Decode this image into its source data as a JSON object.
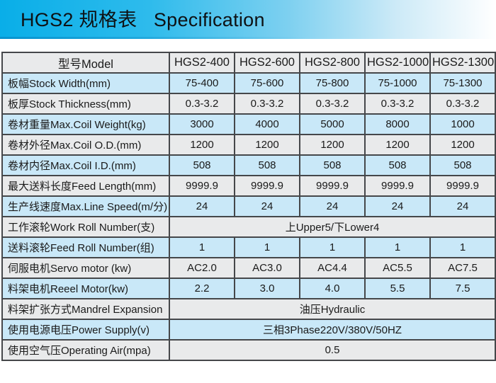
{
  "title": {
    "text": "HGS2 规格表   Specification"
  },
  "colors": {
    "accent_cyan": "#09aee8",
    "row_blue": "#c9e8f8",
    "row_gray": "#e9eaeb",
    "grid_border": "#45474a",
    "title_text": "#0e1114"
  },
  "table": {
    "header": {
      "label": "型号Model",
      "models": [
        "HGS2-400",
        "HGS2-600",
        "HGS2-800",
        "HGS2-1000",
        "HGS2-1300"
      ]
    },
    "rows": [
      {
        "label": "板幅Stock Width(mm)",
        "values": [
          "75-400",
          "75-600",
          "75-800",
          "75-1000",
          "75-1300"
        ]
      },
      {
        "label": "板厚Stock Thickness(mm)",
        "values": [
          "0.3-3.2",
          "0.3-3.2",
          "0.3-3.2",
          "0.3-3.2",
          "0.3-3.2"
        ]
      },
      {
        "label": "卷材重量Max.Coil Weight(kg)",
        "values": [
          "3000",
          "4000",
          "5000",
          "8000",
          "1000"
        ]
      },
      {
        "label": "卷材外径Max.Coil O.D.(mm)",
        "values": [
          "1200",
          "1200",
          "1200",
          "1200",
          "1200"
        ]
      },
      {
        "label": "卷材内径Max.Coil I.D.(mm)",
        "values": [
          "508",
          "508",
          "508",
          "508",
          "508"
        ]
      },
      {
        "label": "最大送料长度Feed Length(mm)",
        "values": [
          "9999.9",
          "9999.9",
          "9999.9",
          "9999.9",
          "9999.9"
        ]
      },
      {
        "label": "生产线速度Max.Line Speed(m/分)",
        "values": [
          "24",
          "24",
          "24",
          "24",
          "24"
        ]
      },
      {
        "label": "工作滚轮Work Roll Number(支)",
        "merged": "上Upper5/下Lower4"
      },
      {
        "label": "送料滚轮Feed Roll Number(组)",
        "values": [
          "1",
          "1",
          "1",
          "1",
          "1"
        ]
      },
      {
        "label": "伺服电机Servo motor (kw)",
        "values": [
          "AC2.0",
          "AC3.0",
          "AC4.4",
          "AC5.5",
          "AC7.5"
        ]
      },
      {
        "label": "料架电机Reeel Motor(kw)",
        "values": [
          "2.2",
          "3.0",
          "4.0",
          "5.5",
          "7.5"
        ]
      },
      {
        "label": "料架扩张方式Mandrel Expansion",
        "merged": "油压Hydraulic"
      },
      {
        "label": "使用电源电压Power Supply(v)",
        "merged": "三相3Phase220V/380V/50HZ"
      },
      {
        "label": "使用空气压Operating Air(mpa)",
        "merged": "0.5"
      }
    ]
  }
}
